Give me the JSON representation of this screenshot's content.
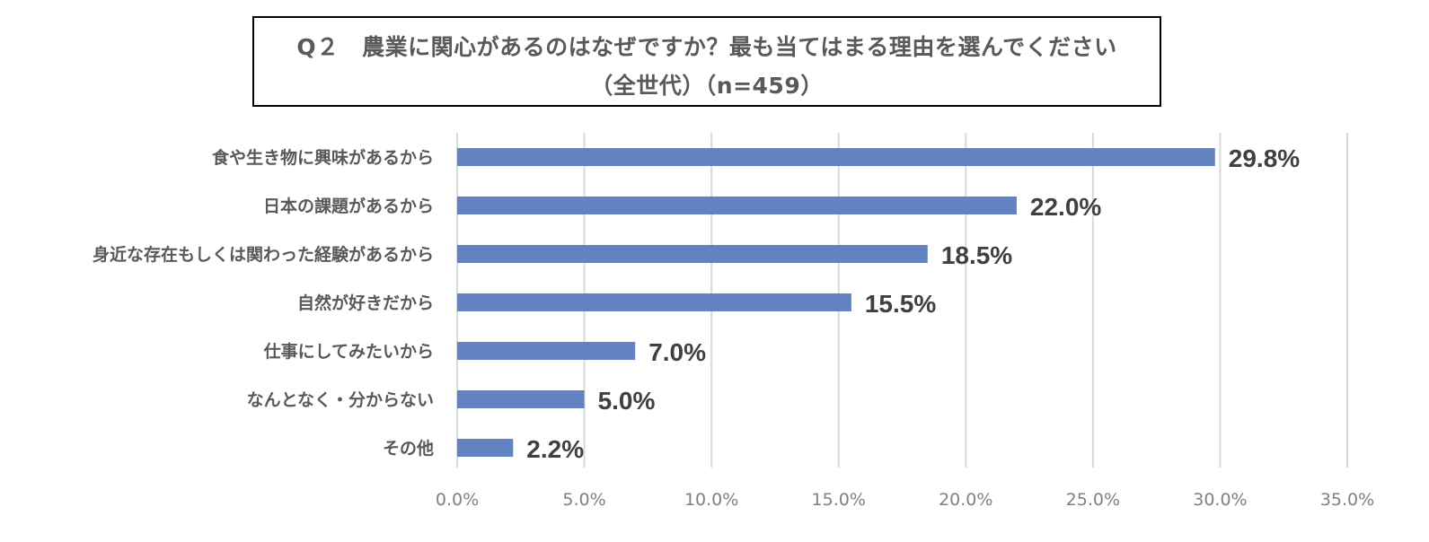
{
  "chart_data": {
    "type": "bar",
    "orientation": "horizontal",
    "title": "Q２　農業に関心があるのはなぜですか？最も当てはまる理由を選んでください",
    "subtitle": "（全世代）（n=459）",
    "categories": [
      "食や生き物に興味があるから",
      "日本の課題があるから",
      "身近な存在もしくは関わった経験があるから",
      "自然が好きだから",
      "仕事にしてみたいから",
      "なんとなく・分からない",
      "その他"
    ],
    "values": [
      29.8,
      22.0,
      18.5,
      15.5,
      7.0,
      5.0,
      2.2
    ],
    "data_labels": [
      "29.8%",
      "22.0%",
      "18.5%",
      "15.5%",
      "7.0%",
      "5.0%",
      "2.2%"
    ],
    "x_ticks": [
      "0.0%",
      "5.0%",
      "10.0%",
      "15.0%",
      "20.0%",
      "25.0%",
      "30.0%",
      "35.0%"
    ],
    "xlim": [
      0,
      35
    ],
    "grid": true,
    "legend": "none",
    "colors": {
      "bar": "#6283C2",
      "grid": "#D9D9D9",
      "category_text": "#595959",
      "value_text": "#404040",
      "tick_text": "#808080",
      "title_text": "#595959"
    }
  }
}
